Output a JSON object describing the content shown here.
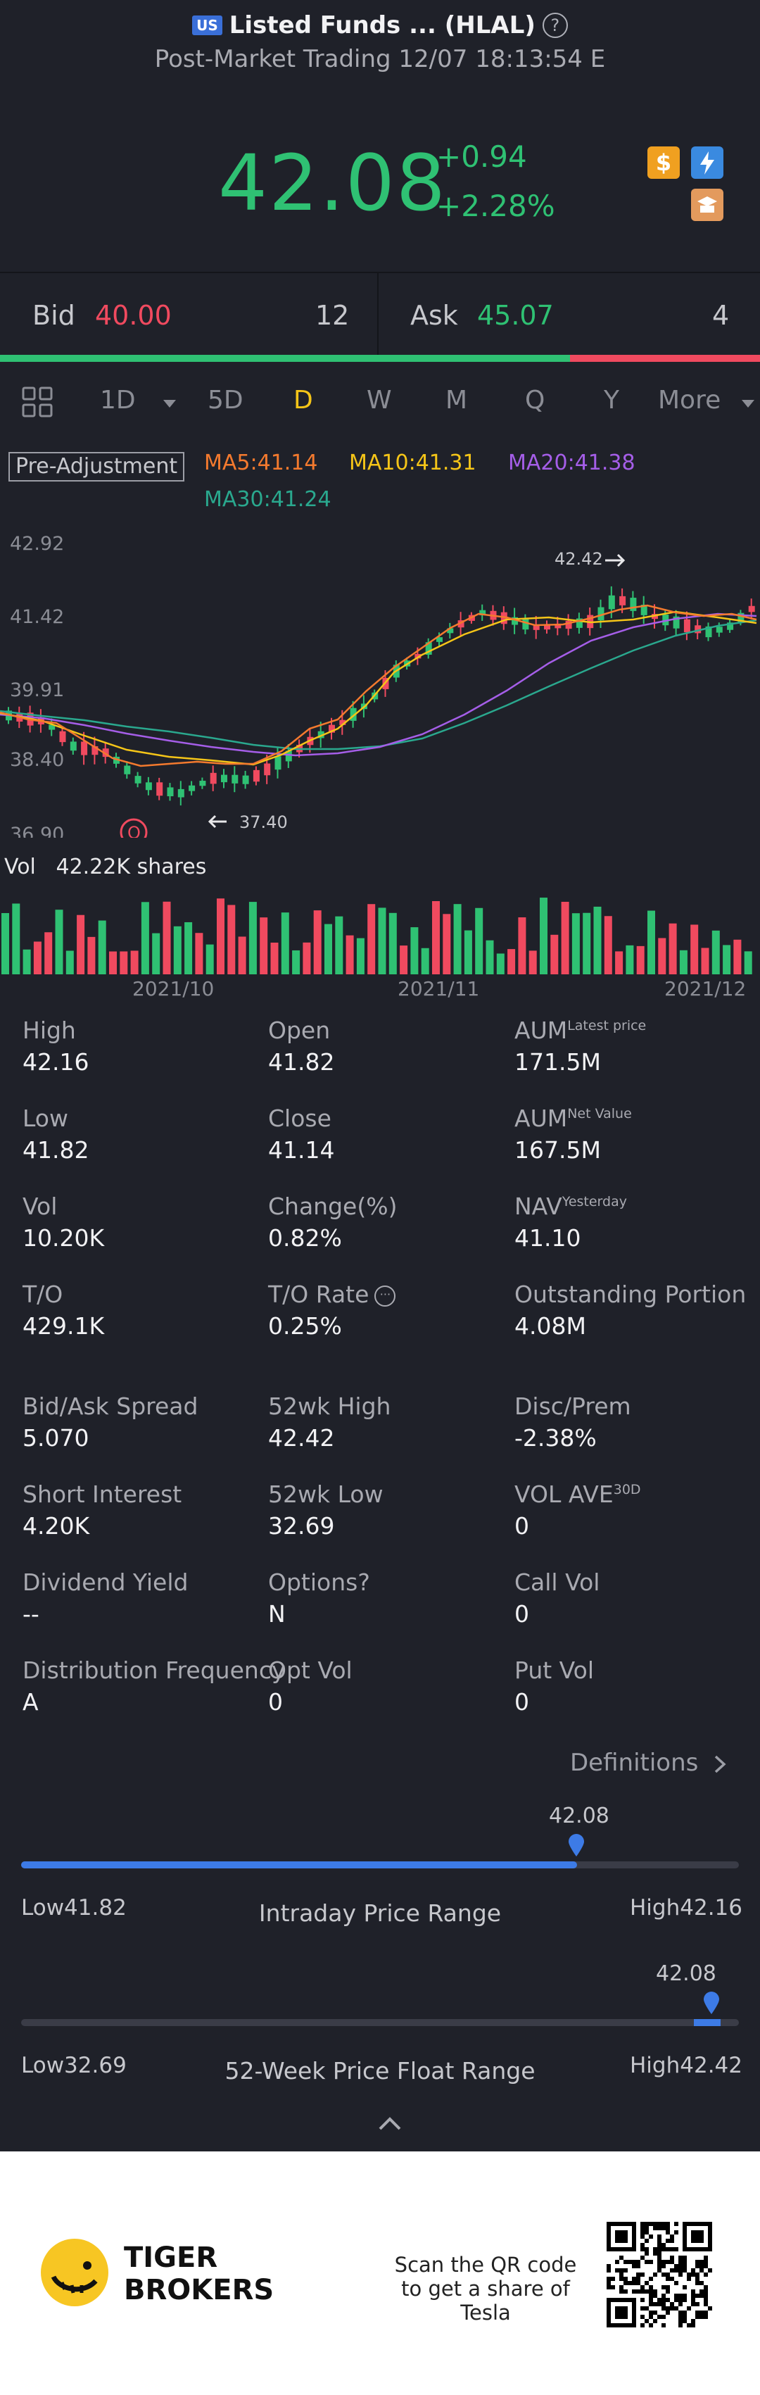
{
  "header": {
    "market_badge": "US",
    "title": "Listed Funds ... (HLAL)",
    "subtitle": "Post-Market Trading 12/07 18:13:54 E"
  },
  "quote": {
    "price": "42.08",
    "change": "+0.94",
    "change_pct": "+2.28%",
    "dollar_icon": "$"
  },
  "bidask": {
    "bid_label": "Bid",
    "bid": "40.00",
    "bid_size": "12",
    "ask_label": "Ask",
    "ask": "45.07",
    "ask_size": "4",
    "bid_share": 0.75
  },
  "tabs": [
    "1D",
    "5D",
    "D",
    "W",
    "M",
    "Q",
    "Y",
    "More"
  ],
  "active_tab": "D",
  "indicators": {
    "pre_adjustment": "Pre-Adjustment",
    "ma5": "MA5:41.14",
    "ma10": "MA10:41.31",
    "ma20": "MA20:41.38",
    "ma30": "MA30:41.24"
  },
  "chart": {
    "y_labels": [
      "42.92",
      "41.42",
      "39.91",
      "38.40",
      "36.90"
    ],
    "high_marker": "42.42",
    "low_marker": "37.40",
    "q_marker": "Q",
    "vol_label": "Vol",
    "vol_value": "42.22K shares",
    "date_labels": [
      "2021/10",
      "2021/11",
      "2021/12"
    ]
  },
  "chart_data": {
    "type": "candlestick",
    "ylim": [
      36.9,
      42.92
    ],
    "y_ticks": [
      42.92,
      41.42,
      39.91,
      38.4,
      36.9
    ],
    "x_ticks": [
      "2021/10",
      "2021/11",
      "2021/12"
    ],
    "high": 42.42,
    "low": 37.4,
    "colors": {
      "up": "#2fc173",
      "down": "#f04a5f",
      "ma5": "#f47a2e",
      "ma10": "#f5c518",
      "ma20": "#a55ee8",
      "ma30": "#2aa88e"
    }
  },
  "stats": [
    {
      "label": "High",
      "value": "42.16"
    },
    {
      "label": "Open",
      "value": "41.82"
    },
    {
      "label": "AUM",
      "sup": "Latest price",
      "value": "171.5M"
    },
    {
      "label": "Low",
      "value": "41.82"
    },
    {
      "label": "Close",
      "value": "41.14"
    },
    {
      "label": "AUM",
      "sup": "Net Value",
      "value": "167.5M"
    },
    {
      "label": "Vol",
      "value": "10.20K"
    },
    {
      "label": "Change(%)",
      "value": "0.82%"
    },
    {
      "label": "NAV",
      "sup": "Yesterday",
      "value": "41.10"
    },
    {
      "label": "T/O",
      "value": "429.1K"
    },
    {
      "label": "T/O Rate",
      "value": "0.25%"
    },
    {
      "label": "Outstanding Portion",
      "value": "4.08M"
    },
    {
      "label": "Bid/Ask Spread",
      "value": "5.070"
    },
    {
      "label": "52wk High",
      "value": "42.42"
    },
    {
      "label": "Disc/Prem",
      "value": "-2.38%"
    },
    {
      "label": "Short Interest",
      "value": "4.20K"
    },
    {
      "label": "52wk Low",
      "value": "32.69"
    },
    {
      "label": "VOL AVE",
      "sup": "30D",
      "value": "0"
    },
    {
      "label": "Dividend Yield",
      "value": "--"
    },
    {
      "label": "Options?",
      "value": "N"
    },
    {
      "label": "Call Vol",
      "value": "0"
    },
    {
      "label": "Distribution Frequency",
      "value": "A"
    },
    {
      "label": "Opt Vol",
      "value": "0"
    },
    {
      "label": "Put Vol",
      "value": "0"
    }
  ],
  "definitions_label": "Definitions",
  "intraday_range": {
    "current": "42.08",
    "low": "Low41.82",
    "high": "High42.16",
    "title": "Intraday Price Range",
    "position": 0.77
  },
  "week52_range": {
    "current": "42.08",
    "low": "Low32.69",
    "high": "High42.42",
    "title": "52-Week Price Float Range",
    "position": 0.965
  },
  "footer": {
    "brand_line1": "TIGER",
    "brand_line2": "BROKERS",
    "scan_text": "Scan the QR code to get a share of Tesla"
  }
}
